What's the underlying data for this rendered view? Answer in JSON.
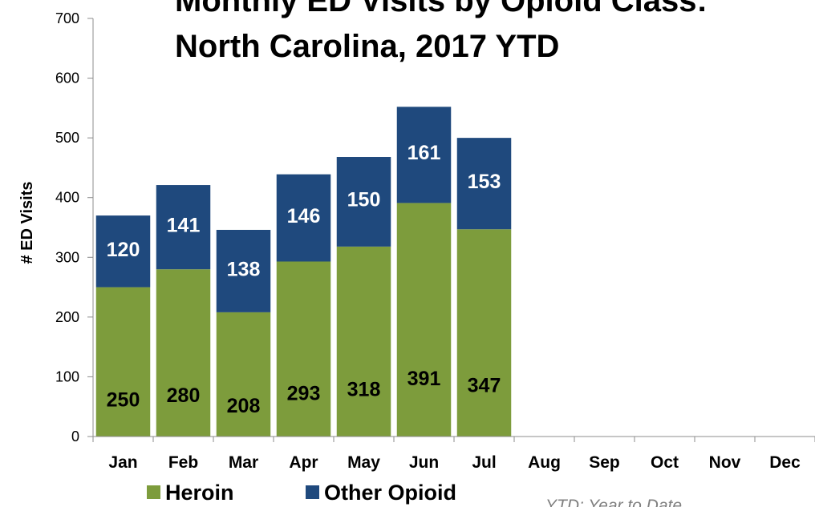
{
  "chart_data": {
    "type": "bar",
    "stacked": true,
    "title": "Monthly ED Visits by Opioid Class:",
    "subtitle": "North Carolina, 2017 YTD",
    "ylabel": "# ED Visits",
    "xlabel": "",
    "ylim": [
      0,
      700
    ],
    "yticks": [
      0,
      100,
      200,
      300,
      400,
      500,
      600,
      700
    ],
    "categories": [
      "Jan",
      "Feb",
      "Mar",
      "Apr",
      "May",
      "Jun",
      "Jul",
      "Aug",
      "Sep",
      "Oct",
      "Nov",
      "Dec"
    ],
    "series": [
      {
        "name": "Heroin",
        "color": "#7d9c3c",
        "label_color": "#000000",
        "values": [
          250,
          280,
          208,
          293,
          318,
          391,
          347,
          null,
          null,
          null,
          null,
          null
        ]
      },
      {
        "name": "Other Opioid",
        "color": "#1f497d",
        "label_color": "#ffffff",
        "values": [
          120,
          141,
          138,
          146,
          150,
          161,
          153,
          null,
          null,
          null,
          null,
          null
        ]
      }
    ],
    "legend_position": "bottom-left",
    "grid": false,
    "note": "YTD: Year to Date"
  }
}
